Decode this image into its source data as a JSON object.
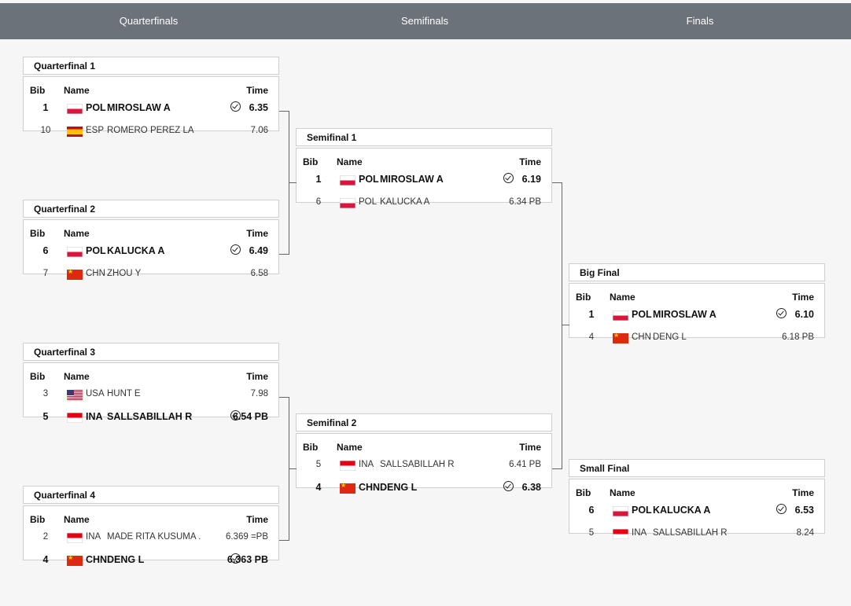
{
  "header": {
    "rounds": [
      "Quarterfinals",
      "Semifinals",
      "Finals"
    ]
  },
  "columns": {
    "bib": "Bib",
    "name": "Name",
    "time": "Time"
  },
  "matches": [
    {
      "id": "qf1",
      "title": "Quarterfinal 1",
      "rows": [
        {
          "bib": "1",
          "flag": "pol",
          "noc": "POL",
          "name": "MIROSLAW A",
          "time": "6.35",
          "winner": true
        },
        {
          "bib": "10",
          "flag": "esp",
          "noc": "ESP",
          "name": "ROMERO PEREZ LA",
          "time": "7.06",
          "winner": false
        }
      ]
    },
    {
      "id": "qf2",
      "title": "Quarterfinal 2",
      "rows": [
        {
          "bib": "6",
          "flag": "pol",
          "noc": "POL",
          "name": "KALUCKA A",
          "time": "6.49",
          "winner": true
        },
        {
          "bib": "7",
          "flag": "chn",
          "noc": "CHN",
          "name": "ZHOU Y",
          "time": "6.58",
          "winner": false
        }
      ]
    },
    {
      "id": "qf3",
      "title": "Quarterfinal 3",
      "rows": [
        {
          "bib": "3",
          "flag": "usa",
          "noc": "USA",
          "name": "HUNT E",
          "time": "7.98",
          "winner": false
        },
        {
          "bib": "5",
          "flag": "ina",
          "noc": "INA",
          "name": "SALLSABILLAH R",
          "time": "6.54 PB",
          "winner": true
        }
      ]
    },
    {
      "id": "qf4",
      "title": "Quarterfinal 4",
      "rows": [
        {
          "bib": "2",
          "flag": "ina",
          "noc": "INA",
          "name": "MADE RITA KUSUMA .",
          "time": "6.369 =PB",
          "winner": false
        },
        {
          "bib": "4",
          "flag": "chn",
          "noc": "CHN",
          "name": "DENG L",
          "time": "6.363 PB",
          "winner": true
        }
      ]
    },
    {
      "id": "sf1",
      "title": "Semifinal 1",
      "rows": [
        {
          "bib": "1",
          "flag": "pol",
          "noc": "POL",
          "name": "MIROSLAW A",
          "time": "6.19",
          "winner": true
        },
        {
          "bib": "6",
          "flag": "pol",
          "noc": "POL",
          "name": "KALUCKA A",
          "time": "6.34 PB",
          "winner": false
        }
      ]
    },
    {
      "id": "sf2",
      "title": "Semifinal 2",
      "rows": [
        {
          "bib": "5",
          "flag": "ina",
          "noc": "INA",
          "name": "SALLSABILLAH R",
          "time": "6.41 PB",
          "winner": false
        },
        {
          "bib": "4",
          "flag": "chn",
          "noc": "CHN",
          "name": "DENG L",
          "time": "6.38",
          "winner": true
        }
      ]
    },
    {
      "id": "bf",
      "title": "Big Final",
      "rows": [
        {
          "bib": "1",
          "flag": "pol",
          "noc": "POL",
          "name": "MIROSLAW A",
          "time": "6.10",
          "winner": true
        },
        {
          "bib": "4",
          "flag": "chn",
          "noc": "CHN",
          "name": "DENG L",
          "time": "6.18 PB",
          "winner": false
        }
      ]
    },
    {
      "id": "sm",
      "title": "Small Final",
      "rows": [
        {
          "bib": "6",
          "flag": "pol",
          "noc": "POL",
          "name": "KALUCKA A",
          "time": "6.53",
          "winner": true
        },
        {
          "bib": "5",
          "flag": "ina",
          "noc": "INA",
          "name": "SALLSABILLAH R",
          "time": "8.24",
          "winner": false
        }
      ]
    }
  ]
}
